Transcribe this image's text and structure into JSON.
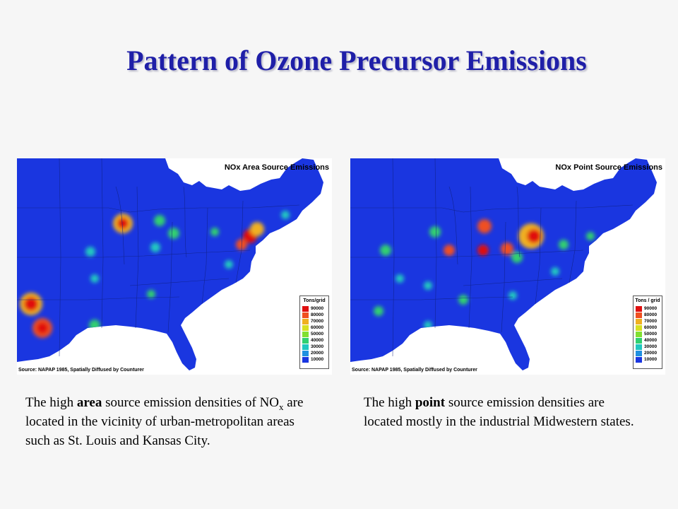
{
  "slide": {
    "title": "Pattern of Ozone Precursor Emissions"
  },
  "colors": {
    "title": "#1f1fa8",
    "background": "#f6f6f6",
    "land_base": "#1a36e0",
    "ocean": "#ffffff"
  },
  "legend_scale": [
    {
      "label": "90000",
      "color": "#e01010"
    },
    {
      "label": "80000",
      "color": "#f05020"
    },
    {
      "label": "70000",
      "color": "#f0b020"
    },
    {
      "label": "60000",
      "color": "#d8e020"
    },
    {
      "label": "50000",
      "color": "#80e030"
    },
    {
      "label": "40000",
      "color": "#30d070"
    },
    {
      "label": "30000",
      "color": "#20c8c0"
    },
    {
      "label": "20000",
      "color": "#2090e0"
    },
    {
      "label": "10000",
      "color": "#1a36e0"
    }
  ],
  "maps": [
    {
      "title": "NOx Area Source Emissions",
      "legend_title": "Tons/grid",
      "source": "Source: NAPAP 1985, Spatially Diffused by Counturer"
    },
    {
      "title": "NOx Point Source Emissions",
      "legend_title": "Tons / grid",
      "source": "Source: NAPAP 1985, Spatially Diffused by Counturer"
    }
  ],
  "captions": {
    "left": {
      "pre": "The high ",
      "bold": "area",
      "mid": " source emission densities of NO",
      "sub": "x",
      "post": " are located in the vicinity of urban-metropolitan areas such as St. Louis and Kansas City."
    },
    "right": {
      "pre": "The high ",
      "bold": "point",
      "post": " source emission densities are located mostly in the industrial Midwestern states."
    }
  }
}
